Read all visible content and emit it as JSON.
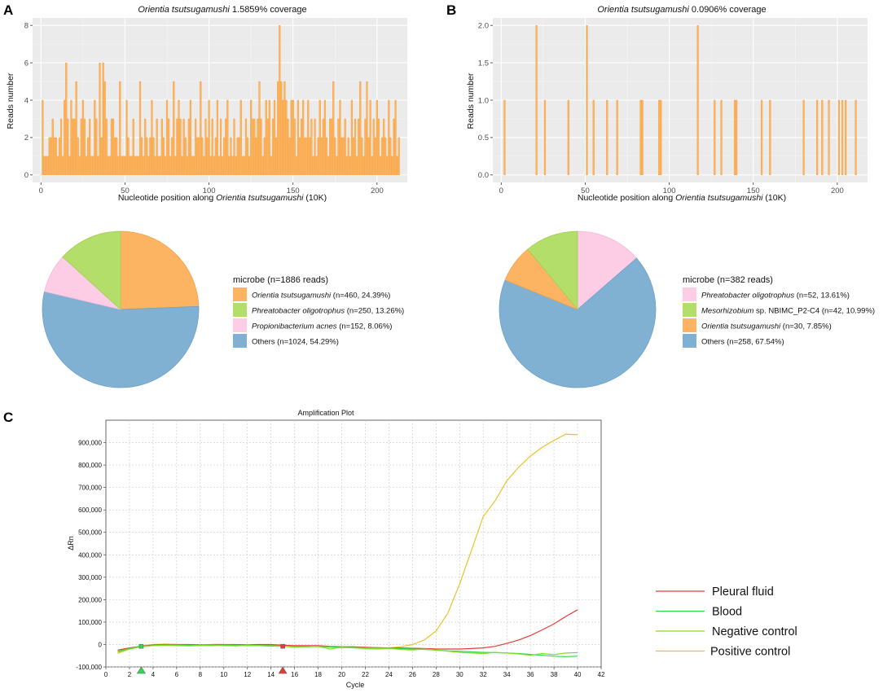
{
  "panels": {
    "a": "A",
    "b": "B",
    "c": "C"
  },
  "chart_data": [
    {
      "id": "coverage_a",
      "type": "bar",
      "title_italic": "Orientia tsutsugamushi",
      "title_rest": " 1.5859% coverage",
      "xlabel_pre": "Nucleotide position along ",
      "xlabel_italic": "Orientia tsutsugamushi",
      "xlabel_post": " (10K)",
      "ylabel": "Reads number",
      "xlim": [
        -5,
        218
      ],
      "ylim": [
        -0.4,
        8.4
      ],
      "xticks": [
        0,
        50,
        100,
        150,
        200
      ],
      "yticks": [
        0,
        2,
        4,
        6,
        8
      ],
      "color": "#FDB462",
      "x": [
        1,
        2,
        3,
        4,
        5,
        6,
        7,
        8,
        9,
        10,
        11,
        12,
        13,
        14,
        15,
        16,
        17,
        18,
        19,
        20,
        21,
        22,
        23,
        24,
        25,
        26,
        27,
        28,
        29,
        30,
        31,
        32,
        33,
        34,
        35,
        36,
        37,
        38,
        39,
        40,
        41,
        42,
        43,
        44,
        45,
        46,
        47,
        48,
        49,
        50,
        51,
        52,
        53,
        54,
        55,
        56,
        57,
        58,
        59,
        60,
        61,
        62,
        63,
        64,
        65,
        66,
        67,
        68,
        69,
        70,
        71,
        72,
        73,
        74,
        75,
        76,
        77,
        78,
        79,
        80,
        81,
        82,
        83,
        84,
        85,
        86,
        87,
        88,
        89,
        90,
        91,
        92,
        93,
        94,
        95,
        96,
        97,
        98,
        99,
        100,
        101,
        102,
        103,
        104,
        105,
        106,
        107,
        108,
        109,
        110,
        111,
        112,
        113,
        114,
        115,
        116,
        117,
        118,
        119,
        120,
        121,
        122,
        123,
        124,
        125,
        126,
        127,
        128,
        129,
        130,
        131,
        132,
        133,
        134,
        135,
        136,
        137,
        138,
        139,
        140,
        141,
        142,
        143,
        144,
        145,
        146,
        147,
        148,
        149,
        150,
        151,
        152,
        153,
        154,
        155,
        156,
        157,
        158,
        159,
        160,
        161,
        162,
        163,
        164,
        165,
        166,
        167,
        168,
        169,
        170,
        171,
        172,
        173,
        174,
        175,
        176,
        177,
        178,
        179,
        180,
        181,
        182,
        183,
        184,
        185,
        186,
        187,
        188,
        189,
        190,
        191,
        192,
        193,
        194,
        195,
        196,
        197,
        198,
        199,
        200,
        201,
        202,
        203,
        204,
        205,
        206,
        207,
        208,
        209,
        210,
        211,
        212,
        213
      ],
      "values": [
        4,
        1,
        1,
        1,
        2,
        2,
        3,
        2,
        2,
        1,
        2,
        3,
        1,
        4,
        6,
        3,
        1,
        4,
        3,
        3,
        5,
        2,
        1,
        3,
        4,
        3,
        1,
        2,
        3,
        1,
        1,
        4,
        3,
        1,
        6,
        2,
        6,
        5,
        3,
        1,
        1,
        3,
        3,
        2,
        2,
        1,
        5,
        1,
        1,
        1,
        4,
        2,
        1,
        1,
        3,
        1,
        1,
        1,
        5,
        2,
        1,
        3,
        2,
        1,
        2,
        4,
        2,
        1,
        3,
        1,
        1,
        3,
        2,
        1,
        4,
        3,
        1,
        2,
        5,
        1,
        3,
        4,
        3,
        1,
        3,
        2,
        1,
        3,
        4,
        1,
        1,
        3,
        2,
        2,
        5,
        2,
        1,
        3,
        2,
        4,
        1,
        3,
        1,
        2,
        4,
        1,
        3,
        1,
        2,
        3,
        4,
        1,
        2,
        1,
        3,
        1,
        2,
        2,
        4,
        1,
        1,
        3,
        2,
        1,
        4,
        3,
        3,
        2,
        3,
        5,
        3,
        1,
        2,
        4,
        3,
        4,
        1,
        3,
        4,
        2,
        5,
        8,
        5,
        4,
        5,
        4,
        3,
        2,
        4,
        4,
        3,
        1,
        4,
        2,
        3,
        4,
        2,
        2,
        4,
        2,
        3,
        1,
        3,
        1,
        2,
        4,
        2,
        3,
        4,
        2,
        1,
        3,
        3,
        5,
        2,
        1,
        3,
        4,
        2,
        2,
        3,
        1,
        2,
        1,
        4,
        2,
        3,
        1,
        3,
        5,
        2,
        1,
        3,
        5,
        2,
        4,
        1,
        3,
        2,
        4,
        3,
        1,
        2,
        3,
        2,
        1,
        4,
        2,
        1,
        3,
        4,
        1,
        2
      ]
    },
    {
      "id": "coverage_b",
      "type": "bar",
      "title_italic": "Orientia tsutsugamushi",
      "title_rest": " 0.0906% coverage",
      "xlabel_pre": "Nucleotide position along ",
      "xlabel_italic": "Orientia tsutsugamushi",
      "xlabel_post": " (10K)",
      "ylabel": "Reads number",
      "xlim": [
        -5,
        218
      ],
      "ylim": [
        -0.1,
        2.1
      ],
      "xticks": [
        0,
        50,
        100,
        150,
        200
      ],
      "yticks": [
        0.0,
        0.5,
        1.0,
        1.5,
        2.0
      ],
      "ytick_labels": [
        "0.0",
        "0.5",
        "1.0",
        "1.5",
        "2.0"
      ],
      "color": "#FDB462",
      "x": [
        2,
        21,
        26,
        40,
        51,
        55,
        63,
        69,
        83,
        84,
        94,
        95,
        117,
        127,
        131,
        139,
        140,
        155,
        160,
        180,
        188,
        191,
        195,
        201,
        203,
        205,
        211
      ],
      "values": [
        1,
        2,
        1,
        1,
        2,
        1,
        1,
        1,
        1,
        1,
        1,
        1,
        2,
        1,
        1,
        1,
        1,
        1,
        1,
        1,
        1,
        1,
        1,
        1,
        1,
        1,
        1
      ]
    },
    {
      "id": "pie_a",
      "type": "pie",
      "legend_title": "microbe (n=1886 reads)",
      "slices": [
        {
          "name_italic": "Orientia tsutsugamushi",
          "name_rest": " (n=460, 24.39%)",
          "value": 460,
          "color": "#FDB462"
        },
        {
          "name_italic": "Phreatobacter oligotrophus",
          "name_rest": " (n=250, 13.26%)",
          "value": 250,
          "color": "#B3DE69"
        },
        {
          "name_italic": "Propionibacterium acnes",
          "name_rest": " (n=152, 8.06%)",
          "value": 152,
          "color": "#FCCDE5"
        },
        {
          "name_italic": "",
          "name_rest": "Others (n=1024, 54.29%)",
          "value": 1024,
          "color": "#80B1D3"
        }
      ],
      "draw_order": [
        0,
        3,
        2,
        1
      ]
    },
    {
      "id": "pie_b",
      "type": "pie",
      "legend_title": "microbe (n=382 reads)",
      "slices": [
        {
          "name_italic": "Phreatobacter oligotrophus",
          "name_rest": " (n=52, 13.61%)",
          "value": 52,
          "color": "#FCCDE5"
        },
        {
          "name_italic": "Mesorhizobium",
          "name_rest": " sp. NBIMC_P2-C4 (n=42, 10.99%)",
          "value": 42,
          "color": "#B3DE69"
        },
        {
          "name_italic": "Orientia tsutsugamushi",
          "name_rest": " (n=30, 7.85%)",
          "value": 30,
          "color": "#FDB462"
        },
        {
          "name_italic": "",
          "name_rest": "Others (n=258, 67.54%)",
          "value": 258,
          "color": "#80B1D3"
        }
      ],
      "draw_order": [
        0,
        3,
        2,
        1
      ]
    },
    {
      "id": "amplification",
      "type": "line",
      "title": "Amplification Plot",
      "xlabel": "Cycle",
      "ylabel": "ΔRn",
      "xlim": [
        0,
        42
      ],
      "ylim": [
        -100000,
        1000000
      ],
      "xticks": [
        0,
        2,
        4,
        6,
        8,
        10,
        12,
        14,
        16,
        18,
        20,
        22,
        24,
        26,
        28,
        30,
        32,
        34,
        36,
        38,
        40,
        42
      ],
      "yticks": [
        -100000,
        0,
        100000,
        200000,
        300000,
        400000,
        500000,
        600000,
        700000,
        800000,
        900000
      ],
      "ytick_labels": [
        "-100,000",
        "0",
        "100,000",
        "200,000",
        "300,000",
        "400,000",
        "500,000",
        "600,000",
        "700,000",
        "800,000",
        "900,000"
      ],
      "series": [
        {
          "name": "Positive control",
          "color": "#E8C42A",
          "x": [
            1,
            2,
            3,
            4,
            5,
            6,
            7,
            8,
            9,
            10,
            11,
            12,
            13,
            14,
            15,
            16,
            17,
            18,
            19,
            20,
            21,
            22,
            23,
            24,
            25,
            26,
            27,
            28,
            29,
            30,
            31,
            32,
            33,
            34,
            35,
            36,
            37,
            38,
            39,
            40
          ],
          "y": [
            -40000,
            -20000,
            -5000,
            0,
            2000,
            0,
            -2000,
            -3000,
            0,
            0,
            -2000,
            0,
            0,
            -3000,
            -5000,
            -8000,
            -7000,
            -10000,
            -12000,
            -15000,
            -12000,
            -14000,
            -16000,
            -15000,
            -10000,
            0,
            20000,
            60000,
            140000,
            270000,
            420000,
            570000,
            640000,
            730000,
            790000,
            840000,
            880000,
            910000,
            938000,
            935000
          ]
        },
        {
          "name": "Pleural fluid",
          "color": "#E83A3A",
          "x": [
            1,
            2,
            3,
            4,
            5,
            6,
            7,
            8,
            9,
            10,
            11,
            12,
            13,
            14,
            15,
            16,
            17,
            18,
            19,
            20,
            21,
            22,
            23,
            24,
            25,
            26,
            27,
            28,
            29,
            30,
            31,
            32,
            33,
            34,
            35,
            36,
            37,
            38,
            39,
            40
          ],
          "y": [
            -25000,
            -15000,
            -8000,
            -2000,
            0,
            0,
            0,
            -2000,
            0,
            0,
            0,
            -2000,
            0,
            0,
            -3000,
            -5000,
            -5000,
            -5000,
            -8000,
            -10000,
            -10000,
            -12000,
            -14000,
            -15000,
            -15000,
            -17000,
            -18000,
            -20000,
            -20000,
            -20000,
            -18000,
            -15000,
            -8000,
            5000,
            20000,
            40000,
            65000,
            92000,
            125000,
            155000
          ]
        },
        {
          "name": "Blood",
          "color": "#2EDA4E",
          "x": [
            1,
            2,
            3,
            4,
            5,
            6,
            7,
            8,
            9,
            10,
            11,
            12,
            13,
            14,
            15,
            16,
            17,
            18,
            19,
            20,
            21,
            22,
            23,
            24,
            25,
            26,
            27,
            28,
            29,
            30,
            31,
            32,
            33,
            34,
            35,
            36,
            37,
            38,
            39,
            40
          ],
          "y": [
            -30000,
            -18000,
            -8000,
            -5000,
            -2000,
            -2000,
            -3000,
            -5000,
            -4000,
            -2000,
            -3000,
            -5000,
            -4000,
            -6000,
            -8000,
            -9000,
            -10000,
            -8000,
            -10000,
            -12000,
            -12000,
            -15000,
            -14000,
            -16000,
            -18000,
            -20000,
            -22000,
            -25000,
            -28000,
            -30000,
            -33000,
            -35000,
            -36000,
            -38000,
            -40000,
            -44000,
            -48000,
            -52000,
            -54000,
            -52000
          ]
        },
        {
          "name": "Negative control",
          "color": "#7DE021",
          "x": [
            1,
            2,
            3,
            4,
            5,
            6,
            7,
            8,
            9,
            10,
            11,
            12,
            13,
            14,
            15,
            16,
            17,
            18,
            19,
            20,
            21,
            22,
            23,
            24,
            25,
            26,
            27,
            28,
            29,
            30,
            31,
            32,
            33,
            34,
            35,
            36,
            37,
            38,
            39,
            40
          ],
          "y": [
            -35000,
            -20000,
            -10000,
            -5000,
            -3000,
            -4000,
            -6000,
            -4000,
            -2000,
            -5000,
            -6000,
            -3000,
            -5000,
            -8000,
            -7000,
            -12000,
            -10000,
            -8000,
            -20000,
            -12000,
            -15000,
            -18000,
            -20000,
            -17000,
            -22000,
            -24000,
            -20000,
            -25000,
            -30000,
            -35000,
            -38000,
            -40000,
            -35000,
            -38000,
            -42000,
            -48000,
            -40000,
            -45000,
            -38000,
            -36000
          ]
        }
      ],
      "legend_order": [
        "Pleural fluid",
        "Blood",
        "Negative control",
        "Positive control"
      ],
      "threshold_markers": [
        {
          "cycle": 3,
          "color": "#2EDA4E"
        },
        {
          "cycle": 15,
          "color": "#E83A3A"
        }
      ]
    }
  ]
}
